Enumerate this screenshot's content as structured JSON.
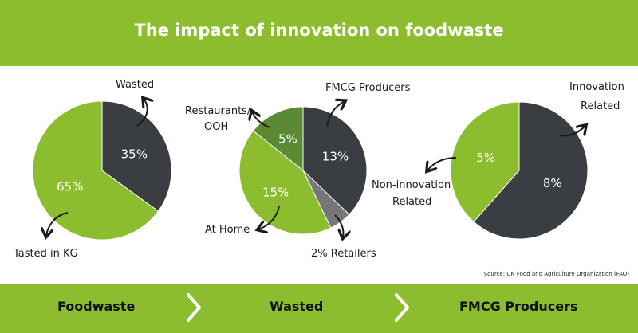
{
  "header": {
    "title": "The impact of innovation on foodwaste"
  },
  "colors": {
    "green": "#8bbd2e",
    "dark": "#3a3d42",
    "olive": "#5b8a35",
    "gray": "#777777"
  },
  "chart_data": [
    {
      "type": "pie",
      "slices": [
        {
          "label": "Wasted",
          "value": 35,
          "value_label": "35%",
          "color": "#3a3d42"
        },
        {
          "label": "Tasted in KG",
          "value": 65,
          "value_label": "65%",
          "color": "#8bbd2e"
        }
      ]
    },
    {
      "type": "pie",
      "slices": [
        {
          "label": "FMCG Producers",
          "value": 13,
          "value_label": "13%",
          "color": "#3a3d42"
        },
        {
          "label": "Retailers",
          "value": 2,
          "value_label": "2%",
          "color": "#777777"
        },
        {
          "label": "At Home",
          "value": 15,
          "value_label": "15%",
          "color": "#8bbd2e"
        },
        {
          "label": "Restaurants/ OOH",
          "value": 5,
          "value_label": "5%",
          "color": "#5b8a35"
        }
      ]
    },
    {
      "type": "pie",
      "slices": [
        {
          "label": "Innovation Related",
          "value": 8,
          "value_label": "8%",
          "color": "#3a3d42"
        },
        {
          "label": "Non-innovation Related",
          "value": 5,
          "value_label": "5%",
          "color": "#8bbd2e"
        }
      ]
    }
  ],
  "labels": {
    "wasted": "Wasted",
    "tasted_kg": "Tasted in KG",
    "fmcg": "FMCG Producers",
    "restaurants_line1": "Restaurants/",
    "restaurants_line2": "OOH",
    "at_home": "At Home",
    "retailers": "2% Retailers",
    "innovation_line1": "Innovation",
    "innovation_line2": "Related",
    "noninnovation_line1": "Non-innovation",
    "noninnovation_line2": "Related"
  },
  "source": "Source: UN Food and Agriculture Organization (FAO)",
  "breadcrumb": [
    "Foodwaste",
    "Wasted",
    "FMCG Producers"
  ]
}
